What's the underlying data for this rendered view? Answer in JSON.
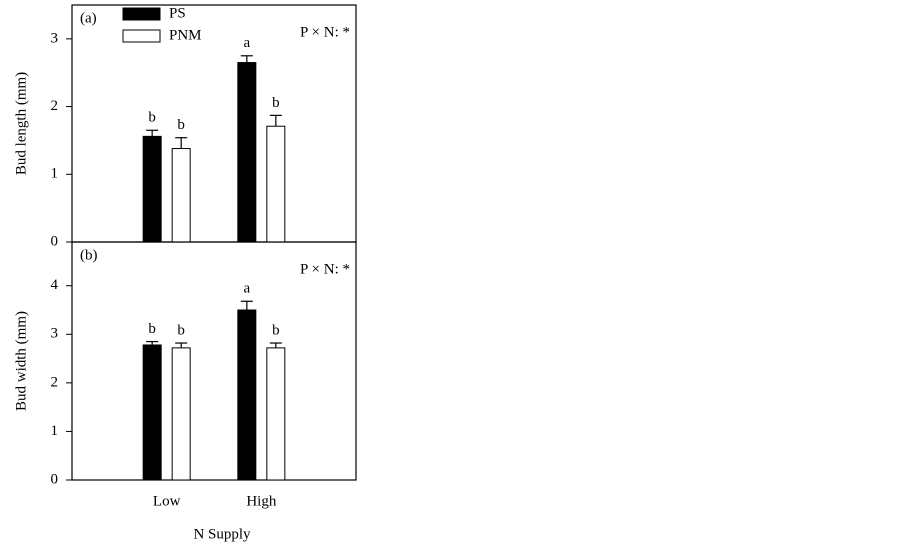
{
  "chart_data": [
    {
      "type": "bar",
      "panel_label": "(a)",
      "annotation": "P × N: *",
      "ylabel": "Bud length (mm)",
      "categories": [
        null,
        null
      ],
      "ylim": [
        0,
        3.5
      ],
      "yticks": [
        0,
        1,
        2,
        3
      ],
      "legend": "upper left",
      "series": [
        {
          "name": "PS",
          "color": "#000000",
          "values": [
            1.56,
            2.65
          ],
          "errors": [
            0.09,
            0.1
          ],
          "letters": [
            "b",
            "a"
          ]
        },
        {
          "name": "PNM",
          "color": "#ffffff",
          "values": [
            1.38,
            1.71
          ],
          "errors": [
            0.16,
            0.16
          ],
          "letters": [
            "b",
            "b"
          ]
        }
      ]
    },
    {
      "type": "bar",
      "panel_label": "(b)",
      "annotation": "P × N: *",
      "ylabel": "Bud width (mm)",
      "xlabel": "N Supply",
      "categories": [
        "Low",
        "High"
      ],
      "ylim": [
        0,
        4.9
      ],
      "yticks": [
        0,
        1,
        2,
        3,
        4
      ],
      "series": [
        {
          "name": "PS",
          "color": "#000000",
          "values": [
            2.78,
            3.5
          ],
          "errors": [
            0.07,
            0.18
          ],
          "letters": [
            "b",
            "a"
          ]
        },
        {
          "name": "PNM",
          "color": "#ffffff",
          "values": [
            2.72,
            2.72
          ],
          "errors": [
            0.1,
            0.1
          ],
          "letters": [
            "b",
            "b"
          ]
        }
      ]
    }
  ]
}
